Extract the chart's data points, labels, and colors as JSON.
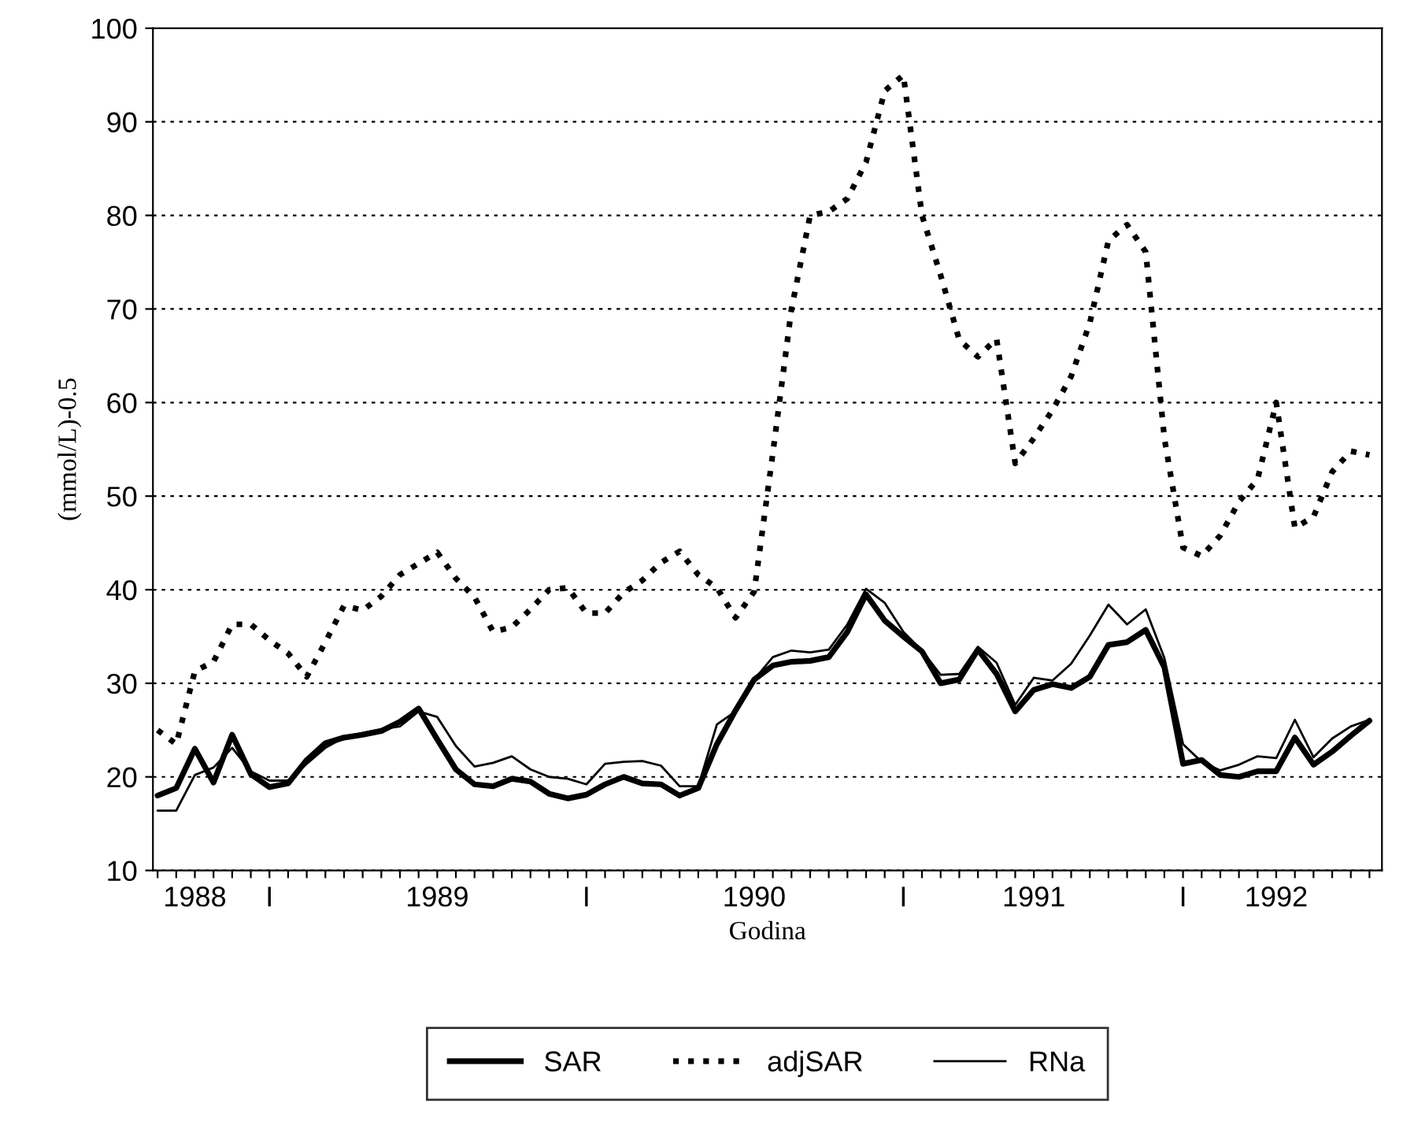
{
  "chart_data": {
    "type": "line",
    "xlabel": "Godina",
    "ylabel": "(mmol/L)-0.5",
    "categories": [
      null,
      null,
      "1988",
      null,
      null,
      null,
      "I",
      null,
      null,
      null,
      null,
      null,
      null,
      null,
      null,
      "1989",
      null,
      null,
      null,
      null,
      null,
      null,
      null,
      "I",
      null,
      null,
      null,
      null,
      null,
      null,
      null,
      null,
      "1990",
      null,
      null,
      null,
      null,
      null,
      null,
      null,
      "I",
      null,
      null,
      null,
      null,
      null,
      null,
      "1991",
      null,
      null,
      null,
      null,
      null,
      null,
      null,
      "I",
      null,
      null,
      null,
      null,
      "1992",
      null,
      null,
      null,
      null,
      null
    ],
    "ylim": [
      10,
      100
    ],
    "yticks": [
      10,
      20,
      30,
      40,
      50,
      60,
      70,
      80,
      90,
      100
    ],
    "grid": "y",
    "legend": "bottom",
    "marker": "none",
    "series": [
      {
        "name": "SAR",
        "color": "#000000",
        "line_style": "solid",
        "values": [
          18,
          18.8,
          23,
          19.4,
          24.5,
          20.3,
          18.9,
          19.3,
          21.8,
          23.6,
          24.2,
          24.5,
          24.9,
          25.9,
          27.3,
          24,
          20.8,
          19.2,
          19,
          19.8,
          19.5,
          18.2,
          17.7,
          18.1,
          19.2,
          20,
          19.3,
          19.2,
          18,
          18.8,
          23.5,
          27.1,
          30.4,
          31.9,
          32.3,
          32.4,
          32.8,
          35.5,
          39.5,
          36.7,
          35,
          33.4,
          30,
          30.4,
          33.6,
          31,
          27,
          29.3,
          29.9,
          29.5,
          30.7,
          34.1,
          34.4,
          35.7,
          31.7,
          21.4,
          21.8,
          20.2,
          20,
          20.6,
          20.6,
          24.2,
          21.3,
          22.7,
          24.4,
          26
        ]
      },
      {
        "name": "adjSAR",
        "color": "#000000",
        "line_style": "dotted",
        "values": [
          25,
          23.5,
          31.3,
          32.3,
          36.3,
          36.3,
          34.6,
          33.2,
          30.7,
          34.4,
          38.3,
          37.8,
          39.3,
          41.6,
          42.8,
          44,
          41.2,
          39.2,
          35.5,
          36,
          37.9,
          40,
          40.2,
          37.5,
          37.5,
          39.7,
          41,
          42.9,
          44.1,
          41.6,
          40.2,
          37,
          39.8,
          54.6,
          70,
          80,
          80.4,
          81.8,
          85.7,
          93.3,
          95,
          80,
          73.6,
          66.7,
          64.9,
          66.8,
          53.5,
          56.2,
          59.2,
          62.8,
          68.5,
          77.3,
          79,
          76.1,
          56.2,
          44.5,
          43.6,
          45.8,
          49.4,
          51.8,
          60,
          46.6,
          47.8,
          52.6,
          54.8,
          54.4
        ]
      },
      {
        "name": "RNa",
        "color": "#000000",
        "line_style": "solid",
        "values": [
          16.4,
          16.4,
          20.2,
          21,
          23.1,
          20.6,
          19.6,
          19.6,
          21.4,
          23.1,
          24.2,
          24.7,
          25.1,
          25.4,
          27,
          26.4,
          23.3,
          21.1,
          21.5,
          22.2,
          20.8,
          20,
          19.8,
          19.2,
          21.4,
          21.6,
          21.7,
          21.2,
          19,
          19,
          25.6,
          27,
          30.4,
          32.8,
          33.5,
          33.3,
          33.6,
          36.3,
          40.1,
          38.6,
          35.5,
          33.5,
          30.9,
          31,
          33.9,
          32.2,
          27.7,
          30.6,
          30.3,
          32.1,
          35.1,
          38.4,
          36.3,
          37.9,
          32.7,
          23.5,
          21.6,
          20.7,
          21.3,
          22.2,
          22,
          26.1,
          22.1,
          24.1,
          25.4,
          26.1
        ]
      }
    ]
  }
}
